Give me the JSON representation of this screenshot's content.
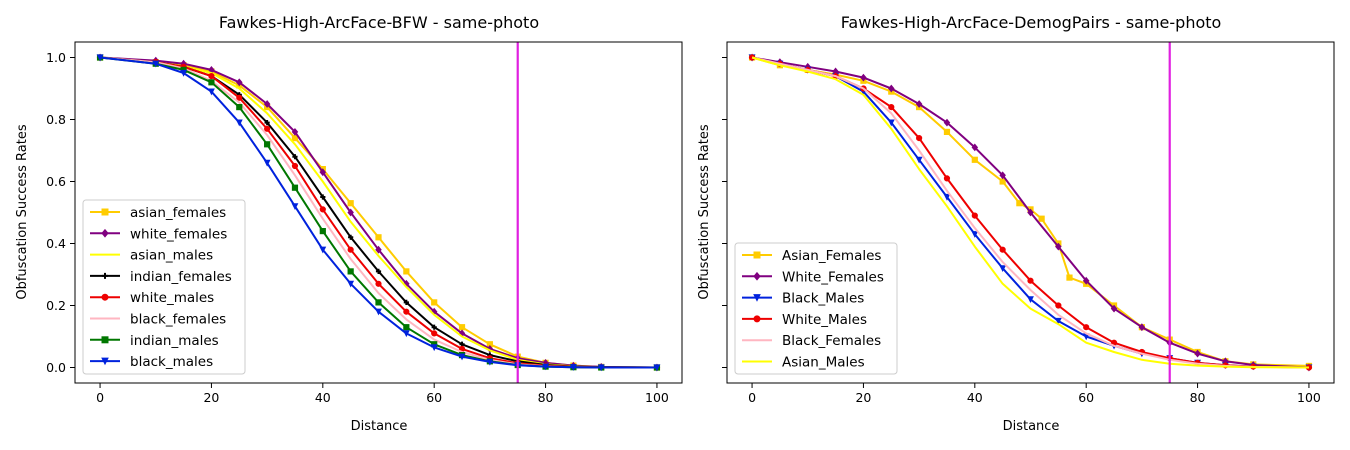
{
  "chart_data": [
    {
      "type": "line",
      "title": "Fawkes-High-ArcFace-BFW - same-photo",
      "xlabel": "Distance",
      "ylabel": "Obfuscation Success Rates",
      "xlim": [
        -4.5,
        104.5
      ],
      "ylim": [
        -0.05,
        1.05
      ],
      "xticks": [
        "0",
        "20",
        "40",
        "60",
        "80",
        "100"
      ],
      "yticks": [
        "0.0",
        "0.2",
        "0.4",
        "0.6",
        "0.8",
        "1.0"
      ],
      "vline": {
        "x": 75,
        "color": "#e020e0"
      },
      "legend_loc": "lower-left",
      "series": [
        {
          "name": "asian_females",
          "color": "#ffcc00",
          "marker": "square",
          "x": [
            0,
            10,
            15,
            20,
            25,
            30,
            35,
            40,
            45,
            50,
            55,
            60,
            65,
            70,
            75,
            80,
            85,
            90,
            100
          ],
          "values": [
            1.0,
            0.985,
            0.975,
            0.955,
            0.91,
            0.84,
            0.74,
            0.64,
            0.53,
            0.42,
            0.31,
            0.21,
            0.13,
            0.075,
            0.035,
            0.015,
            0.006,
            0.002,
            0.0
          ]
        },
        {
          "name": "white_females",
          "color": "#800080",
          "marker": "diamond",
          "x": [
            0,
            10,
            15,
            20,
            25,
            30,
            35,
            40,
            45,
            50,
            55,
            60,
            65,
            70,
            75,
            80,
            85,
            90,
            100
          ],
          "values": [
            1.0,
            0.99,
            0.98,
            0.96,
            0.92,
            0.85,
            0.76,
            0.63,
            0.5,
            0.38,
            0.27,
            0.18,
            0.11,
            0.06,
            0.03,
            0.015,
            0.006,
            0.002,
            0.0
          ]
        },
        {
          "name": "asian_males",
          "color": "#ffff00",
          "marker": "none",
          "x": [
            0,
            10,
            15,
            20,
            25,
            30,
            35,
            40,
            45,
            50,
            55,
            60,
            65,
            70,
            75,
            80,
            85,
            90,
            100
          ],
          "values": [
            1.0,
            0.985,
            0.97,
            0.95,
            0.9,
            0.82,
            0.72,
            0.6,
            0.47,
            0.36,
            0.26,
            0.17,
            0.1,
            0.055,
            0.025,
            0.01,
            0.004,
            0.001,
            0.0
          ]
        },
        {
          "name": "indian_females",
          "color": "#000000",
          "marker": "plus",
          "x": [
            0,
            10,
            15,
            20,
            25,
            30,
            35,
            40,
            45,
            50,
            55,
            60,
            65,
            70,
            75,
            80,
            85,
            90,
            100
          ],
          "values": [
            1.0,
            0.985,
            0.97,
            0.94,
            0.88,
            0.79,
            0.68,
            0.55,
            0.42,
            0.31,
            0.21,
            0.13,
            0.075,
            0.04,
            0.02,
            0.008,
            0.003,
            0.001,
            0.0
          ]
        },
        {
          "name": "white_males",
          "color": "#ee0000",
          "marker": "circle",
          "x": [
            0,
            10,
            15,
            20,
            25,
            30,
            35,
            40,
            45,
            50,
            55,
            60,
            65,
            70,
            75,
            80,
            85,
            90,
            100
          ],
          "values": [
            1.0,
            0.985,
            0.97,
            0.94,
            0.87,
            0.77,
            0.65,
            0.51,
            0.38,
            0.27,
            0.18,
            0.11,
            0.06,
            0.03,
            0.014,
            0.006,
            0.002,
            0.0,
            0.0
          ]
        },
        {
          "name": "black_females",
          "color": "#ffb6c1",
          "marker": "none",
          "x": [
            0,
            10,
            15,
            20,
            25,
            30,
            35,
            40,
            45,
            50,
            55,
            60,
            65,
            70,
            75,
            80,
            85,
            90,
            100
          ],
          "values": [
            1.0,
            0.985,
            0.965,
            0.925,
            0.855,
            0.75,
            0.62,
            0.48,
            0.35,
            0.24,
            0.155,
            0.09,
            0.05,
            0.025,
            0.01,
            0.004,
            0.001,
            0.0,
            0.0
          ]
        },
        {
          "name": "indian_males",
          "color": "#007700",
          "marker": "square",
          "x": [
            0,
            10,
            15,
            20,
            25,
            30,
            35,
            40,
            45,
            50,
            55,
            60,
            65,
            70,
            75,
            80,
            85,
            90,
            100
          ],
          "values": [
            1.0,
            0.98,
            0.96,
            0.92,
            0.84,
            0.72,
            0.58,
            0.44,
            0.31,
            0.21,
            0.13,
            0.075,
            0.04,
            0.02,
            0.008,
            0.003,
            0.001,
            0.0,
            0.0
          ]
        },
        {
          "name": "black_males",
          "color": "#0022dd",
          "marker": "triangle",
          "x": [
            0,
            10,
            15,
            20,
            25,
            30,
            35,
            40,
            45,
            50,
            55,
            60,
            65,
            70,
            75,
            80,
            85,
            90,
            100
          ],
          "values": [
            1.0,
            0.98,
            0.95,
            0.89,
            0.79,
            0.66,
            0.52,
            0.38,
            0.27,
            0.18,
            0.11,
            0.065,
            0.035,
            0.018,
            0.007,
            0.003,
            0.001,
            0.0,
            0.0
          ]
        }
      ]
    },
    {
      "type": "line",
      "title": "Fawkes-High-ArcFace-DemogPairs - same-photo",
      "xlabel": "Distance",
      "ylabel": "Obfuscation Success Rates",
      "xlim": [
        -4.5,
        104.5
      ],
      "ylim": [
        -0.05,
        1.05
      ],
      "xticks": [
        "0",
        "20",
        "40",
        "60",
        "80",
        "100"
      ],
      "yticks": [
        "0.0",
        "0.2",
        "0.4",
        "0.6",
        "0.8",
        "1.0"
      ],
      "vline": {
        "x": 75,
        "color": "#e020e0"
      },
      "legend_loc": "lower-left",
      "series": [
        {
          "name": "Asian_Females",
          "color": "#ffcc00",
          "marker": "square",
          "x": [
            0,
            5,
            10,
            15,
            20,
            25,
            30,
            35,
            40,
            45,
            48,
            50,
            52,
            55,
            57,
            60,
            65,
            70,
            75,
            80,
            85,
            90,
            100
          ],
          "values": [
            1.0,
            0.975,
            0.96,
            0.945,
            0.925,
            0.89,
            0.84,
            0.76,
            0.67,
            0.6,
            0.53,
            0.51,
            0.48,
            0.4,
            0.29,
            0.27,
            0.2,
            0.13,
            0.09,
            0.05,
            0.02,
            0.01,
            0.005
          ]
        },
        {
          "name": "White_Females",
          "color": "#800080",
          "marker": "diamond",
          "x": [
            0,
            5,
            10,
            15,
            20,
            25,
            30,
            35,
            40,
            45,
            50,
            55,
            60,
            65,
            70,
            75,
            80,
            85,
            90,
            100
          ],
          "values": [
            1.0,
            0.985,
            0.97,
            0.955,
            0.935,
            0.9,
            0.85,
            0.79,
            0.71,
            0.62,
            0.5,
            0.39,
            0.28,
            0.19,
            0.13,
            0.08,
            0.045,
            0.02,
            0.008,
            0.0
          ]
        },
        {
          "name": "Black_Males",
          "color": "#0022dd",
          "marker": "triangle",
          "x": [
            0,
            5,
            10,
            15,
            20,
            25,
            30,
            35,
            40,
            45,
            50,
            55,
            60,
            65,
            70,
            75,
            80,
            85,
            90,
            100
          ],
          "values": [
            1.0,
            0.98,
            0.96,
            0.94,
            0.89,
            0.79,
            0.67,
            0.55,
            0.43,
            0.32,
            0.22,
            0.15,
            0.1,
            0.07,
            0.045,
            0.03,
            0.015,
            0.007,
            0.003,
            0.0
          ]
        },
        {
          "name": "White_Males",
          "color": "#ee0000",
          "marker": "circle",
          "x": [
            0,
            5,
            10,
            15,
            20,
            25,
            30,
            35,
            40,
            45,
            50,
            55,
            60,
            65,
            70,
            75,
            80,
            85,
            90,
            100
          ],
          "values": [
            1.0,
            0.98,
            0.96,
            0.94,
            0.9,
            0.84,
            0.74,
            0.61,
            0.49,
            0.38,
            0.28,
            0.2,
            0.13,
            0.08,
            0.05,
            0.03,
            0.015,
            0.007,
            0.003,
            0.0
          ]
        },
        {
          "name": "Black_Females",
          "color": "#ffb6c1",
          "marker": "none",
          "x": [
            0,
            5,
            10,
            15,
            20,
            25,
            30,
            35,
            40,
            45,
            50,
            55,
            60,
            65,
            70,
            75,
            80,
            85,
            90,
            100
          ],
          "values": [
            1.0,
            0.98,
            0.96,
            0.94,
            0.9,
            0.82,
            0.7,
            0.57,
            0.45,
            0.34,
            0.25,
            0.17,
            0.11,
            0.07,
            0.045,
            0.025,
            0.012,
            0.005,
            0.002,
            0.0
          ]
        },
        {
          "name": "Asian_Males",
          "color": "#ffff00",
          "marker": "none",
          "x": [
            0,
            5,
            10,
            15,
            20,
            25,
            30,
            35,
            40,
            45,
            50,
            55,
            60,
            65,
            70,
            75,
            80,
            85,
            90,
            100
          ],
          "values": [
            1.0,
            0.975,
            0.955,
            0.93,
            0.88,
            0.77,
            0.64,
            0.52,
            0.39,
            0.27,
            0.19,
            0.14,
            0.08,
            0.05,
            0.025,
            0.012,
            0.006,
            0.003,
            0.001,
            0.0
          ]
        }
      ]
    }
  ]
}
